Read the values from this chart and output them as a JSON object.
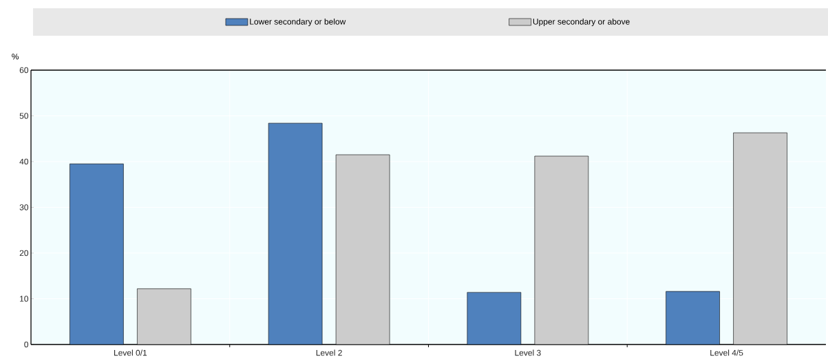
{
  "chart_data": {
    "type": "bar",
    "ylabel": "%",
    "categories": [
      "Level 0/1",
      "Level 2",
      "Level 3",
      "Level 4/5"
    ],
    "series": [
      {
        "name": "Lower secondary or below",
        "color": "#4f81bd",
        "values": [
          39.5,
          48.4,
          11.4,
          11.6
        ]
      },
      {
        "name": "Upper secondary or above",
        "color": "#cccccc",
        "values": [
          12.2,
          41.5,
          41.2,
          46.3
        ]
      }
    ],
    "ylim": [
      0,
      60
    ],
    "yticks": [
      0,
      10,
      20,
      30,
      40,
      50,
      60
    ],
    "grid": true,
    "legend": "top"
  }
}
